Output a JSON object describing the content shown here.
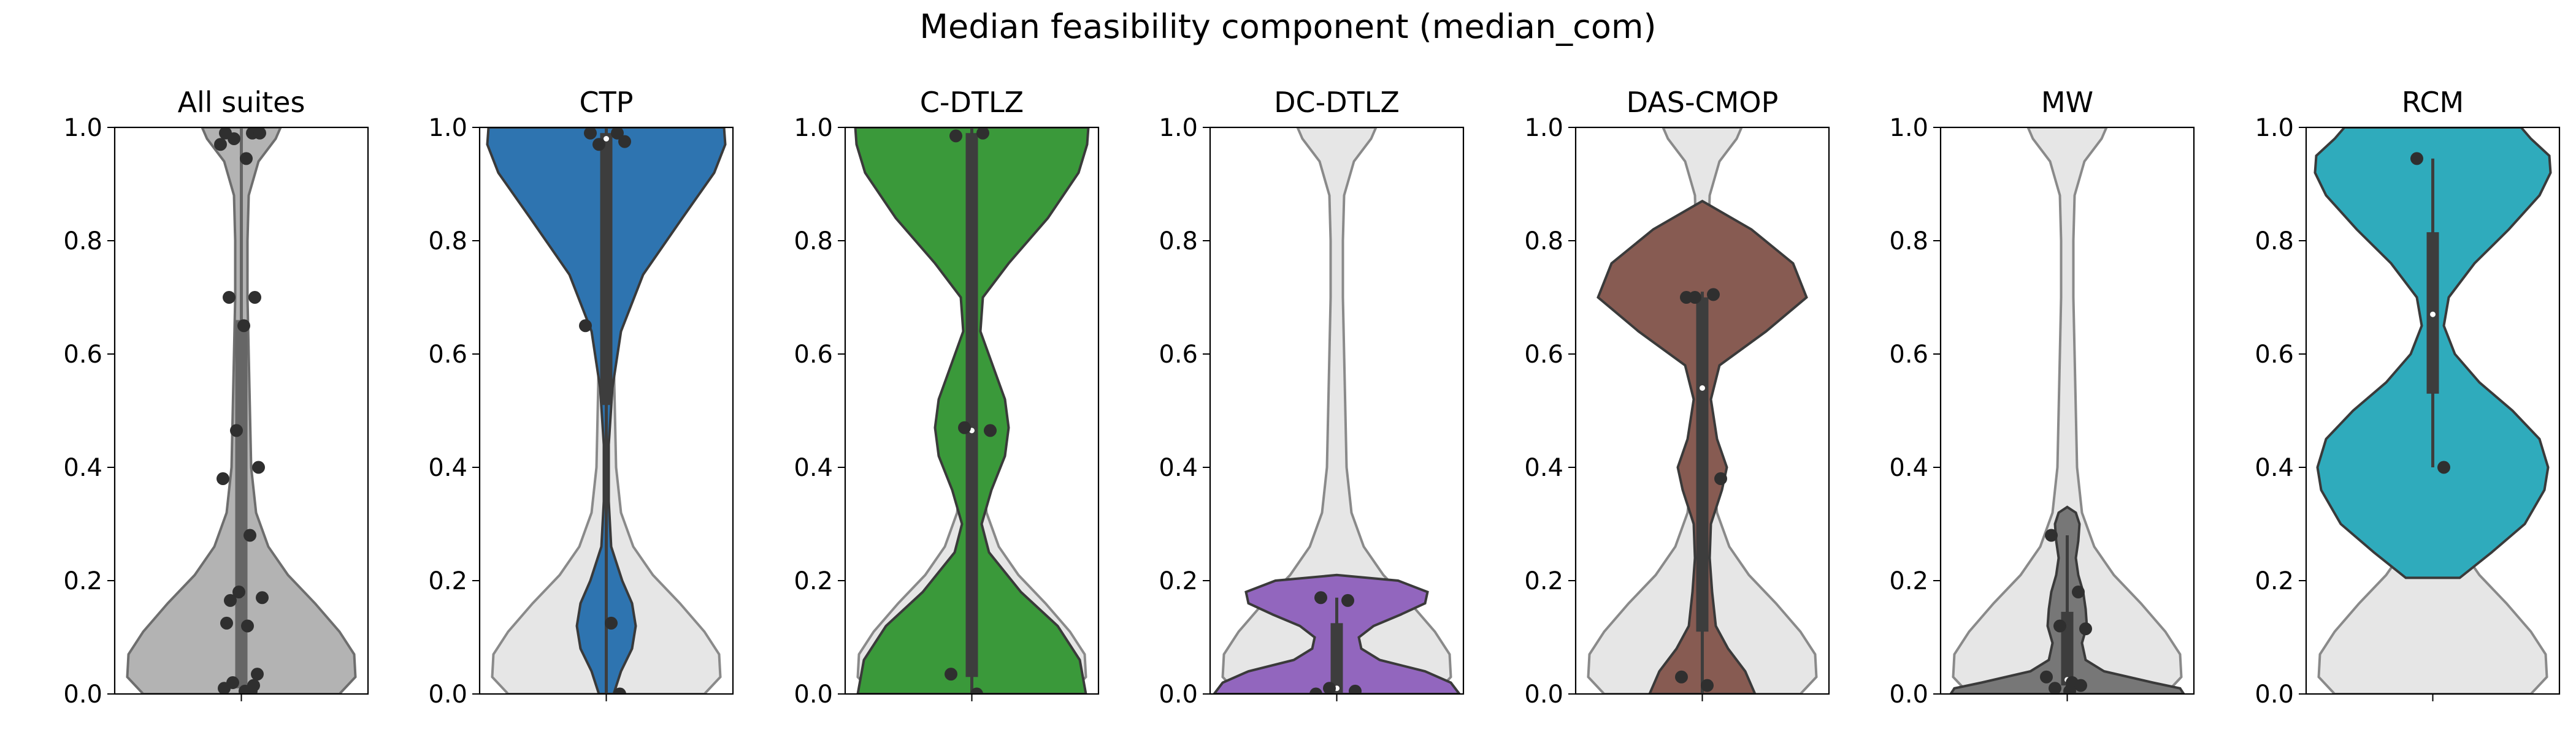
{
  "chart_data": {
    "type": "violin",
    "title": "Median feasibility component (median_com)",
    "ylim": [
      0,
      1
    ],
    "yticks": [
      "0.0",
      "0.2",
      "0.4",
      "0.6",
      "0.8",
      "1.0"
    ],
    "background_color": "#e6e6e6",
    "panels": [
      {
        "title": "All suites",
        "color": "#b3b3b3",
        "points": [
          0.99,
          0.99,
          0.98,
          0.99,
          0.97,
          0.945,
          0.7,
          0.7,
          0.65,
          0.465,
          0.4,
          0.38,
          0.28,
          0.18,
          0.17,
          0.165,
          0.12,
          0.125,
          0.035,
          0.02,
          0.015,
          0.01,
          0.005,
          0.005
        ],
        "quartiles": [
          0.01,
          0.175,
          0.66
        ],
        "whisker": [
          0.0,
          1.0
        ],
        "density": [
          [
            0.0,
            0.8
          ],
          [
            0.03,
            0.93
          ],
          [
            0.07,
            0.92
          ],
          [
            0.11,
            0.8
          ],
          [
            0.16,
            0.6
          ],
          [
            0.21,
            0.38
          ],
          [
            0.26,
            0.22
          ],
          [
            0.32,
            0.12
          ],
          [
            0.4,
            0.08
          ],
          [
            0.5,
            0.07
          ],
          [
            0.6,
            0.06
          ],
          [
            0.7,
            0.05
          ],
          [
            0.8,
            0.05
          ],
          [
            0.88,
            0.06
          ],
          [
            0.94,
            0.14
          ],
          [
            0.98,
            0.28
          ],
          [
            1.0,
            0.32
          ]
        ]
      },
      {
        "title": "CTP",
        "color": "#2e74b0",
        "points": [
          0.99,
          0.99,
          0.97,
          0.975,
          0.65,
          0.125,
          0.0
        ],
        "quartiles": [
          0.51,
          0.98,
          0.99
        ],
        "whisker": [
          0.0,
          1.0
        ],
        "density": [
          [
            0.0,
            0.06
          ],
          [
            0.04,
            0.12
          ],
          [
            0.08,
            0.21
          ],
          [
            0.12,
            0.24
          ],
          [
            0.16,
            0.21
          ],
          [
            0.2,
            0.13
          ],
          [
            0.26,
            0.04
          ],
          [
            0.34,
            0.02
          ],
          [
            0.44,
            0.02
          ],
          [
            0.54,
            0.05
          ],
          [
            0.64,
            0.12
          ],
          [
            0.74,
            0.3
          ],
          [
            0.84,
            0.62
          ],
          [
            0.92,
            0.88
          ],
          [
            0.97,
            0.97
          ],
          [
            1.0,
            0.96
          ]
        ]
      },
      {
        "title": "C-DTLZ",
        "color": "#3a993a",
        "points": [
          0.985,
          0.99,
          0.47,
          0.465,
          0.035,
          0.0
        ],
        "quartiles": [
          0.03,
          0.465,
          0.99
        ],
        "whisker": [
          0.0,
          1.0
        ],
        "density": [
          [
            0.0,
            0.93
          ],
          [
            0.06,
            0.88
          ],
          [
            0.12,
            0.7
          ],
          [
            0.18,
            0.4
          ],
          [
            0.25,
            0.14
          ],
          [
            0.3,
            0.08
          ],
          [
            0.36,
            0.16
          ],
          [
            0.42,
            0.27
          ],
          [
            0.47,
            0.3
          ],
          [
            0.52,
            0.27
          ],
          [
            0.58,
            0.17
          ],
          [
            0.64,
            0.07
          ],
          [
            0.7,
            0.09
          ],
          [
            0.76,
            0.3
          ],
          [
            0.84,
            0.62
          ],
          [
            0.92,
            0.87
          ],
          [
            0.97,
            0.94
          ],
          [
            1.0,
            0.95
          ]
        ]
      },
      {
        "title": "DC-DTLZ",
        "color": "#9266be",
        "points": [
          0.17,
          0.165,
          0.01,
          0.005,
          0.0
        ],
        "quartiles": [
          0.0,
          0.01,
          0.125
        ],
        "whisker": [
          0.0,
          0.17
        ],
        "density": [
          [
            0.0,
            1.0
          ],
          [
            0.02,
            0.93
          ],
          [
            0.04,
            0.72
          ],
          [
            0.06,
            0.35
          ],
          [
            0.08,
            0.2
          ],
          [
            0.1,
            0.18
          ],
          [
            0.12,
            0.3
          ],
          [
            0.14,
            0.52
          ],
          [
            0.16,
            0.72
          ],
          [
            0.18,
            0.74
          ],
          [
            0.2,
            0.5
          ],
          [
            0.21,
            0.0
          ]
        ]
      },
      {
        "title": "DAS-CMOP",
        "color": "#875b52",
        "points": [
          0.7,
          0.705,
          0.7,
          0.38,
          0.03,
          0.015
        ],
        "quartiles": [
          0.11,
          0.54,
          0.7
        ],
        "whisker": [
          0.0,
          0.71
        ],
        "density": [
          [
            0.0,
            0.43
          ],
          [
            0.04,
            0.35
          ],
          [
            0.08,
            0.21
          ],
          [
            0.12,
            0.11
          ],
          [
            0.18,
            0.08
          ],
          [
            0.24,
            0.06
          ],
          [
            0.3,
            0.07
          ],
          [
            0.36,
            0.16
          ],
          [
            0.4,
            0.2
          ],
          [
            0.45,
            0.12
          ],
          [
            0.52,
            0.07
          ],
          [
            0.58,
            0.14
          ],
          [
            0.64,
            0.52
          ],
          [
            0.7,
            0.85
          ],
          [
            0.76,
            0.74
          ],
          [
            0.82,
            0.4
          ],
          [
            0.86,
            0.08
          ],
          [
            0.87,
            0.0
          ]
        ]
      },
      {
        "title": "MW",
        "color": "#777777",
        "points": [
          0.28,
          0.18,
          0.12,
          0.115,
          0.03,
          0.02,
          0.015,
          0.01,
          0.005
        ],
        "quartiles": [
          0.015,
          0.025,
          0.145
        ],
        "whisker": [
          0.0,
          0.28
        ],
        "density": [
          [
            0.0,
            0.95
          ],
          [
            0.01,
            0.92
          ],
          [
            0.02,
            0.7
          ],
          [
            0.04,
            0.3
          ],
          [
            0.06,
            0.15
          ],
          [
            0.09,
            0.12
          ],
          [
            0.12,
            0.16
          ],
          [
            0.15,
            0.15
          ],
          [
            0.18,
            0.13
          ],
          [
            0.21,
            0.09
          ],
          [
            0.24,
            0.07
          ],
          [
            0.27,
            0.09
          ],
          [
            0.3,
            0.1
          ],
          [
            0.32,
            0.07
          ],
          [
            0.33,
            0.0
          ]
        ]
      },
      {
        "title": "RCM",
        "color": "#2fabbc",
        "points": [
          0.945,
          0.4
        ],
        "quartiles": [
          0.53,
          0.67,
          0.815
        ],
        "whisker": [
          0.4,
          0.945
        ],
        "density": [
          [
            0.205,
            0.22
          ],
          [
            0.25,
            0.48
          ],
          [
            0.3,
            0.75
          ],
          [
            0.36,
            0.91
          ],
          [
            0.4,
            0.94
          ],
          [
            0.45,
            0.87
          ],
          [
            0.5,
            0.65
          ],
          [
            0.55,
            0.38
          ],
          [
            0.6,
            0.18
          ],
          [
            0.65,
            0.09
          ],
          [
            0.7,
            0.13
          ],
          [
            0.76,
            0.34
          ],
          [
            0.82,
            0.62
          ],
          [
            0.88,
            0.87
          ],
          [
            0.92,
            0.96
          ],
          [
            0.95,
            0.95
          ],
          [
            0.98,
            0.8
          ],
          [
            1.0,
            0.72
          ]
        ]
      }
    ]
  }
}
